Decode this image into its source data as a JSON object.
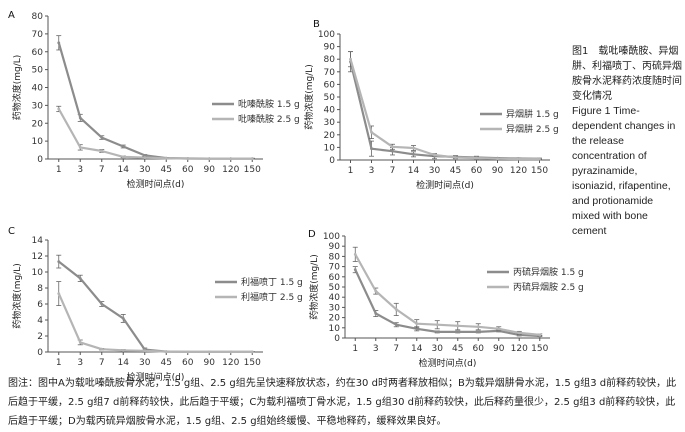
{
  "caption": {
    "title_cn": "图1　载吡嗪酰胺、异烟肼、利福喷丁、丙硫异烟胺骨水泥释药浓度随时间变化情况",
    "title_en": "Figure 1 Time-dependent changes in the release concentration of pyrazinamide, isoniazid, rifapentine, and protionamide mixed with bone cement"
  },
  "footnote": "图注：图中A为载吡嗪酰胺骨水泥，1.5 g组、2.5 g组先呈快速释放状态，约在30 d时两者释放相似；B为载异烟肼骨水泥，1.5 g组3 d前释药较快，此后趋于平缓，2.5 g组7 d前释药较快，此后趋于平缓；C为载利福喷丁骨水泥，1.5 g组30 d前释药较快，此后释药量很少，2.5 g组3 d前释药较快，此后趋于平缓；D为载丙硫异烟胺骨水泥，1.5 g组、2.5 g组始终缓慢、平稳地释药，缓释效果良好。",
  "colors": {
    "series_1_5g": "#8c8c8c",
    "series_2_5g": "#b5b5b5",
    "axis": "#555555"
  },
  "chart_data": [
    {
      "panel": "A",
      "type": "line",
      "ylabel": "药物浓度(mg/L)",
      "xlabel": "检测时间点(d)",
      "categories": [
        "1",
        "3",
        "7",
        "14",
        "30",
        "45",
        "60",
        "90",
        "120",
        "150"
      ],
      "ylim": [
        0,
        80
      ],
      "yticks": [
        0,
        10,
        20,
        30,
        40,
        50,
        60,
        70,
        80
      ],
      "legend_position": "right",
      "series": [
        {
          "name": "吡嗪酰胺 1.5 g",
          "values": [
            65,
            23,
            12,
            7,
            2,
            0.5,
            0.3,
            0.2,
            0.2,
            0.2
          ],
          "errors": [
            4,
            2,
            1,
            0.8,
            0.5,
            0.3,
            0.2,
            0.2,
            0.2,
            0.2
          ]
        },
        {
          "name": "吡嗪酰胺 2.5 g",
          "values": [
            28,
            6.5,
            4.5,
            1.2,
            0.8,
            0.4,
            0.3,
            0.2,
            0.2,
            0.2
          ],
          "errors": [
            1.5,
            1.5,
            0.8,
            0.5,
            0.4,
            0.3,
            0.2,
            0.2,
            0.2,
            0.2
          ]
        }
      ]
    },
    {
      "panel": "B",
      "type": "line",
      "ylabel": "药物浓度(mg/L)",
      "xlabel": "检测时间点(d)",
      "categories": [
        "1",
        "3",
        "7",
        "14",
        "30",
        "45",
        "60",
        "90",
        "120",
        "150"
      ],
      "ylim": [
        0,
        100
      ],
      "yticks": [
        0,
        10,
        20,
        30,
        40,
        50,
        60,
        70,
        80,
        90,
        100
      ],
      "legend_position": "right",
      "series": [
        {
          "name": "异烟肼 1.5 g",
          "values": [
            78,
            9,
            7,
            4.5,
            3,
            2.5,
            2,
            1.5,
            1.2,
            1
          ],
          "errors": [
            8,
            6,
            3,
            2,
            2,
            1,
            1,
            0.5,
            0.5,
            0.5
          ]
        },
        {
          "name": "异烟肼 2.5 g",
          "values": [
            80,
            22,
            10.5,
            9.5,
            4,
            2,
            1.5,
            1,
            0.8,
            0.8
          ],
          "errors": [
            6,
            5,
            2,
            2,
            1,
            1,
            0.5,
            0.5,
            0.5,
            0.5
          ]
        }
      ]
    },
    {
      "panel": "C",
      "type": "line",
      "ylabel": "药物浓度(mg/L)",
      "xlabel": "检测时间点(d)",
      "categories": [
        "1",
        "3",
        "7",
        "14",
        "30",
        "45",
        "60",
        "90",
        "120",
        "150"
      ],
      "ylim": [
        0,
        14
      ],
      "yticks": [
        0,
        2,
        4,
        6,
        8,
        10,
        12,
        14
      ],
      "legend_position": "right",
      "series": [
        {
          "name": "利福喷丁 1.5 g",
          "values": [
            11.3,
            9.2,
            6,
            4.2,
            0.3,
            0.05,
            0.02,
            0.02,
            0.02,
            0.02
          ],
          "errors": [
            0.8,
            0.4,
            0.3,
            0.5,
            0.2,
            0.05,
            0.02,
            0.02,
            0.02,
            0.02
          ]
        },
        {
          "name": "利福喷丁 2.5 g",
          "values": [
            7.3,
            1.2,
            0.35,
            0.2,
            0.15,
            0.05,
            0.02,
            0.02,
            0.02,
            0.02
          ],
          "errors": [
            1.5,
            0.3,
            0.1,
            0.1,
            0.1,
            0.05,
            0.02,
            0.02,
            0.02,
            0.02
          ]
        }
      ]
    },
    {
      "panel": "D",
      "type": "line",
      "ylabel": "药物浓度(mg/L)",
      "xlabel": "检测时间点(d)",
      "categories": [
        "1",
        "3",
        "7",
        "14",
        "30",
        "45",
        "60",
        "90",
        "120",
        "150"
      ],
      "ylim": [
        0,
        100
      ],
      "yticks": [
        0,
        10,
        20,
        30,
        40,
        50,
        60,
        70,
        80,
        90,
        100
      ],
      "legend_position": "right",
      "series": [
        {
          "name": "丙硫异烟胺 1.5 g",
          "values": [
            67,
            24,
            13,
            9,
            6,
            6,
            6,
            7,
            3,
            2
          ],
          "errors": [
            3,
            3,
            2,
            2,
            1,
            1,
            1,
            1,
            1,
            0.5
          ]
        },
        {
          "name": "丙硫异烟胺 2.5 g",
          "values": [
            82,
            46,
            28,
            14,
            13,
            12,
            11,
            9,
            5,
            3
          ],
          "errors": [
            7,
            3,
            6,
            4,
            4,
            4,
            3,
            2,
            1.5,
            1
          ]
        }
      ]
    }
  ]
}
